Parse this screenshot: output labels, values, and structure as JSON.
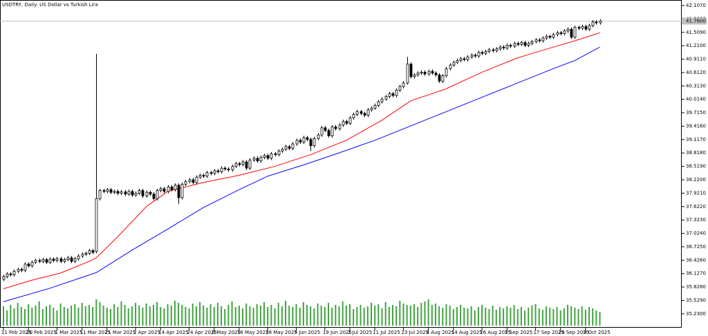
{
  "chart_data": {
    "type": "candlestick",
    "title": "USDTRY, Daily:  US Dollar vs Turkish Lira",
    "bull_color": "#ffffff",
    "bear_color": "#000000",
    "outline_color": "#000000",
    "volume_color": "#3fa33f",
    "ylim": [
      34.92,
      42.23
    ],
    "yticks": [
      {
        "value": 35.23,
        "label": "35.2300"
      },
      {
        "value": 35.529,
        "label": "35.5290"
      },
      {
        "value": 35.828,
        "label": "35.8280"
      },
      {
        "value": 36.127,
        "label": "36.1270"
      },
      {
        "value": 36.426,
        "label": "36.4260"
      },
      {
        "value": 36.725,
        "label": "36.7250"
      },
      {
        "value": 37.024,
        "label": "37.0240"
      },
      {
        "value": 37.323,
        "label": "37.3230"
      },
      {
        "value": 37.622,
        "label": "37.6220"
      },
      {
        "value": 37.921,
        "label": "37.9210"
      },
      {
        "value": 38.22,
        "label": "38.2200"
      },
      {
        "value": 38.519,
        "label": "38.5190"
      },
      {
        "value": 38.818,
        "label": "38.8180"
      },
      {
        "value": 39.117,
        "label": "39.1170"
      },
      {
        "value": 39.416,
        "label": "39.4160"
      },
      {
        "value": 39.715,
        "label": "39.7150"
      },
      {
        "value": 40.014,
        "label": "40.0140"
      },
      {
        "value": 40.313,
        "label": "40.3130"
      },
      {
        "value": 40.612,
        "label": "40.6120"
      },
      {
        "value": 40.911,
        "label": "40.9110"
      },
      {
        "value": 41.21,
        "label": "41.2100"
      },
      {
        "value": 41.509,
        "label": "41.5090"
      },
      {
        "value": 41.808,
        "label": "41.8080"
      },
      {
        "value": 42.107,
        "label": "42.1070"
      }
    ],
    "xticks": [
      {
        "value": 0,
        "label": "11 Feb 2025"
      },
      {
        "value": 7,
        "label": "20 Feb 2025"
      },
      {
        "value": 15,
        "label": "1 Mar 2025"
      },
      {
        "value": 22,
        "label": "11 Mar 2025"
      },
      {
        "value": 29,
        "label": "21 Mar 2025"
      },
      {
        "value": 37,
        "label": "2 Apr 2025"
      },
      {
        "value": 44,
        "label": "14 Apr 2025"
      },
      {
        "value": 52,
        "label": "24 Apr 2025"
      },
      {
        "value": 59,
        "label": "6 May 2025"
      },
      {
        "value": 66,
        "label": "16 May 2025"
      },
      {
        "value": 74,
        "label": "28 May 2025"
      },
      {
        "value": 82,
        "label": "9 Jun 2025"
      },
      {
        "value": 90,
        "label": "19 Jun 2025"
      },
      {
        "value": 97,
        "label": "1 Jul 2025"
      },
      {
        "value": 104,
        "label": "11 Jul 2025"
      },
      {
        "value": 112,
        "label": "23 Jul 2025"
      },
      {
        "value": 119,
        "label": "4 Aug 2025"
      },
      {
        "value": 126,
        "label": "14 Aug 2025"
      },
      {
        "value": 134,
        "label": "26 Aug 2025"
      },
      {
        "value": 141,
        "label": "5 Sep 2025"
      },
      {
        "value": 149,
        "label": "17 Sep 2025"
      },
      {
        "value": 156,
        "label": "29 Sep 2025"
      },
      {
        "value": 163,
        "label": "9 Oct 2025"
      }
    ],
    "last_price": {
      "value": 41.76,
      "label": "41.7600"
    },
    "open": [
      36.0,
      36.06,
      36.12,
      36.1,
      36.18,
      36.22,
      36.2,
      36.34,
      36.3,
      36.38,
      36.42,
      36.4,
      36.44,
      36.38,
      36.45,
      36.42,
      36.46,
      36.4,
      36.44,
      36.48,
      36.4,
      36.46,
      36.52,
      36.56,
      36.58,
      36.64,
      36.62,
      37.8,
      37.98,
      37.96,
      38.0,
      37.94,
      37.96,
      37.92,
      37.95,
      37.9,
      37.96,
      37.88,
      37.92,
      37.98,
      37.86,
      37.94,
      37.9,
      37.8,
      37.98,
      38.02,
      37.96,
      38.06,
      38.0,
      38.1,
      37.82,
      38.12,
      38.18,
      38.22,
      38.16,
      38.28,
      38.32,
      38.3,
      38.38,
      38.36,
      38.42,
      38.4,
      38.48,
      38.46,
      38.44,
      38.52,
      38.58,
      38.56,
      38.62,
      38.48,
      38.66,
      38.7,
      38.64,
      38.72,
      38.76,
      38.7,
      38.8,
      38.78,
      38.86,
      38.9,
      38.96,
      38.92,
      39.02,
      39.1,
      39.06,
      39.16,
      39.12,
      38.98,
      39.14,
      39.22,
      39.38,
      39.32,
      39.2,
      39.4,
      39.36,
      39.44,
      39.52,
      39.48,
      39.6,
      39.68,
      39.74,
      39.7,
      39.66,
      39.78,
      39.82,
      39.88,
      39.96,
      40.02,
      40.08,
      40.14,
      40.1,
      40.22,
      40.3,
      40.38,
      40.8,
      40.52,
      40.56,
      40.6,
      40.62,
      40.58,
      40.64,
      40.6,
      40.56,
      40.42,
      40.54,
      40.7,
      40.78,
      40.84,
      40.88,
      40.92,
      40.9,
      40.96,
      41.0,
      40.98,
      41.06,
      41.04,
      41.08,
      41.12,
      41.1,
      41.14,
      41.18,
      41.16,
      41.22,
      41.2,
      41.26,
      41.24,
      41.28,
      41.22,
      41.26,
      41.3,
      41.34,
      41.32,
      41.38,
      41.42,
      41.4,
      41.46,
      41.5,
      41.48,
      41.54,
      41.58,
      41.4,
      41.62,
      41.6,
      41.64,
      41.58,
      41.66,
      41.74,
      41.72
    ],
    "high": [
      36.1,
      36.16,
      36.16,
      36.22,
      36.26,
      36.26,
      36.38,
      36.38,
      36.42,
      36.46,
      36.46,
      36.48,
      36.48,
      36.49,
      36.49,
      36.5,
      36.5,
      36.48,
      36.52,
      36.52,
      36.5,
      36.56,
      36.6,
      36.62,
      36.68,
      36.68,
      41.03,
      38.02,
      38.02,
      38.04,
      38.04,
      38.0,
      38.0,
      37.99,
      37.99,
      38.0,
      38.0,
      37.96,
      38.02,
      38.02,
      37.98,
      37.98,
      37.94,
      38.02,
      38.06,
      38.06,
      38.1,
      38.1,
      38.14,
      38.14,
      38.16,
      38.22,
      38.26,
      38.26,
      38.32,
      38.36,
      38.36,
      38.42,
      38.42,
      38.46,
      38.46,
      38.52,
      38.52,
      38.5,
      38.56,
      38.62,
      38.62,
      38.66,
      38.66,
      38.7,
      38.74,
      38.74,
      38.76,
      38.8,
      38.8,
      38.84,
      38.84,
      38.9,
      38.94,
      39.0,
      39.0,
      39.06,
      39.14,
      39.14,
      39.2,
      39.2,
      39.16,
      39.18,
      39.26,
      39.42,
      39.42,
      39.36,
      39.44,
      39.44,
      39.48,
      39.56,
      39.56,
      39.64,
      39.72,
      39.78,
      39.78,
      39.74,
      39.82,
      39.86,
      39.92,
      40.0,
      40.06,
      40.12,
      40.18,
      40.18,
      40.26,
      40.34,
      40.42,
      40.96,
      40.84,
      40.6,
      40.64,
      40.66,
      40.66,
      40.68,
      40.68,
      40.64,
      40.6,
      40.58,
      40.74,
      40.82,
      40.88,
      40.92,
      40.96,
      40.96,
      41.0,
      41.04,
      41.04,
      41.1,
      41.1,
      41.12,
      41.16,
      41.16,
      41.18,
      41.22,
      41.22,
      41.26,
      41.26,
      41.3,
      41.3,
      41.32,
      41.32,
      41.3,
      41.34,
      41.38,
      41.38,
      41.42,
      41.46,
      41.46,
      41.5,
      41.54,
      41.54,
      41.58,
      41.62,
      41.62,
      41.66,
      41.66,
      41.68,
      41.68,
      41.7,
      41.78,
      41.78,
      41.8
    ],
    "low": [
      35.96,
      36.02,
      36.06,
      36.06,
      36.14,
      36.16,
      36.16,
      36.26,
      36.26,
      36.34,
      36.36,
      36.36,
      36.34,
      36.34,
      36.38,
      36.38,
      36.36,
      36.36,
      36.4,
      36.36,
      36.36,
      36.42,
      36.48,
      36.52,
      36.54,
      36.56,
      36.58,
      37.76,
      37.92,
      37.92,
      37.9,
      37.9,
      37.88,
      37.88,
      37.86,
      37.86,
      37.84,
      37.84,
      37.88,
      37.82,
      37.82,
      37.86,
      37.76,
      37.76,
      37.94,
      37.92,
      37.92,
      37.96,
      37.96,
      37.68,
      37.78,
      38.08,
      38.14,
      38.12,
      38.12,
      38.24,
      38.26,
      38.26,
      38.32,
      38.32,
      38.36,
      38.36,
      38.42,
      38.4,
      38.4,
      38.48,
      38.52,
      38.52,
      38.44,
      38.44,
      38.62,
      38.6,
      38.6,
      38.68,
      38.66,
      38.66,
      38.74,
      38.74,
      38.82,
      38.86,
      38.88,
      38.88,
      38.98,
      39.02,
      39.02,
      39.08,
      38.86,
      38.94,
      39.1,
      39.18,
      39.28,
      39.16,
      39.16,
      39.32,
      39.32,
      39.4,
      39.44,
      39.44,
      39.56,
      39.64,
      39.66,
      39.62,
      39.62,
      39.74,
      39.78,
      39.84,
      39.92,
      39.98,
      40.04,
      40.06,
      40.06,
      40.18,
      40.26,
      40.34,
      40.48,
      40.48,
      40.52,
      40.56,
      40.54,
      40.54,
      40.56,
      40.52,
      40.38,
      40.38,
      40.5,
      40.66,
      40.74,
      40.8,
      40.84,
      40.86,
      40.86,
      40.92,
      40.94,
      40.94,
      41.0,
      41.0,
      41.04,
      41.06,
      41.06,
      41.1,
      41.12,
      41.12,
      41.16,
      41.16,
      41.2,
      41.2,
      41.18,
      41.18,
      41.22,
      41.26,
      41.28,
      41.28,
      41.34,
      41.36,
      41.36,
      41.42,
      41.44,
      41.44,
      41.5,
      41.36,
      41.36,
      41.56,
      41.56,
      41.54,
      41.54,
      41.62,
      41.68,
      41.68
    ],
    "close": [
      36.06,
      36.12,
      36.1,
      36.18,
      36.22,
      36.2,
      36.34,
      36.3,
      36.38,
      36.42,
      36.4,
      36.44,
      36.38,
      36.45,
      36.42,
      36.46,
      36.4,
      36.44,
      36.48,
      36.4,
      36.46,
      36.52,
      36.56,
      36.58,
      36.64,
      36.6,
      37.8,
      37.98,
      37.96,
      38.0,
      37.94,
      37.96,
      37.92,
      37.95,
      37.9,
      37.96,
      37.88,
      37.92,
      37.98,
      37.86,
      37.94,
      37.9,
      37.8,
      37.98,
      38.02,
      37.96,
      38.06,
      38.0,
      38.1,
      37.82,
      38.12,
      38.18,
      38.22,
      38.16,
      38.28,
      38.32,
      38.3,
      38.38,
      38.36,
      38.42,
      38.4,
      38.48,
      38.46,
      38.44,
      38.52,
      38.58,
      38.56,
      38.62,
      38.48,
      38.66,
      38.7,
      38.64,
      38.72,
      38.76,
      38.7,
      38.8,
      38.78,
      38.86,
      38.9,
      38.96,
      38.92,
      39.02,
      39.1,
      39.06,
      39.16,
      39.12,
      38.98,
      39.14,
      39.22,
      39.38,
      39.32,
      39.2,
      39.4,
      39.36,
      39.44,
      39.52,
      39.48,
      39.6,
      39.68,
      39.74,
      39.7,
      39.66,
      39.78,
      39.82,
      39.88,
      39.96,
      40.02,
      40.08,
      40.14,
      40.1,
      40.22,
      40.3,
      40.38,
      40.8,
      40.52,
      40.56,
      40.6,
      40.62,
      40.58,
      40.64,
      40.6,
      40.56,
      40.42,
      40.54,
      40.7,
      40.78,
      40.84,
      40.88,
      40.92,
      40.9,
      40.96,
      41.0,
      40.98,
      41.06,
      41.04,
      41.08,
      41.12,
      41.1,
      41.14,
      41.18,
      41.16,
      41.22,
      41.2,
      41.26,
      41.24,
      41.28,
      41.22,
      41.26,
      41.3,
      41.34,
      41.32,
      41.38,
      41.42,
      41.4,
      41.46,
      41.5,
      41.48,
      41.54,
      41.58,
      41.4,
      41.62,
      41.6,
      41.64,
      41.58,
      41.66,
      41.74,
      41.72,
      41.76
    ],
    "volume": [
      28,
      22,
      30,
      25,
      33,
      27,
      24,
      31,
      26,
      29,
      35,
      24,
      28,
      30,
      26,
      22,
      32,
      27,
      25,
      29,
      31,
      26,
      33,
      28,
      30,
      27,
      38,
      34,
      29,
      26,
      24,
      31,
      27,
      35,
      30,
      25,
      28,
      33,
      29,
      26,
      32,
      28,
      30,
      34,
      27,
      25,
      31,
      29,
      36,
      33,
      30,
      27,
      25,
      32,
      28,
      34,
      29,
      26,
      31,
      27,
      33,
      28,
      24,
      30,
      35,
      27,
      29,
      25,
      32,
      28,
      26,
      31,
      29,
      34,
      27,
      30,
      25,
      33,
      28,
      36,
      29,
      27,
      31,
      26,
      34,
      30,
      28,
      25,
      32,
      29,
      27,
      33,
      26,
      30,
      28,
      35,
      29,
      31,
      24,
      27,
      30,
      26,
      28,
      33,
      29,
      31,
      25,
      34,
      27,
      30,
      28,
      36,
      32,
      30,
      29,
      31,
      27,
      33,
      35,
      38,
      30,
      32,
      28,
      26,
      31,
      29,
      24,
      27,
      30,
      26,
      25,
      28,
      22,
      27,
      30,
      26,
      24,
      29,
      23,
      27,
      25,
      28,
      26,
      30,
      24,
      27,
      22,
      26,
      29,
      31,
      25,
      23,
      28,
      26,
      24,
      27,
      22,
      25,
      30,
      28,
      26,
      24,
      28,
      23,
      27,
      25,
      22,
      20
    ],
    "moving_averages": [
      {
        "color": "#ff0000",
        "x": [
          0,
          8,
          16,
          24,
          26,
          32,
          40,
          46,
          56,
          66,
          76,
          86,
          96,
          106,
          114,
          124,
          134,
          144,
          154,
          160,
          167
        ],
        "values": [
          35.79,
          35.98,
          36.14,
          36.4,
          36.48,
          36.95,
          37.62,
          37.96,
          38.16,
          38.32,
          38.52,
          38.78,
          39.1,
          39.55,
          39.98,
          40.25,
          40.62,
          40.94,
          41.18,
          41.32,
          41.5
        ]
      },
      {
        "color": "#0000ff",
        "x": [
          0,
          13,
          26,
          36,
          46,
          56,
          66,
          74,
          84,
          94,
          104,
          114,
          124,
          134,
          144,
          154,
          160,
          167
        ],
        "values": [
          35.5,
          35.8,
          36.15,
          36.65,
          37.12,
          37.6,
          38.0,
          38.3,
          38.55,
          38.82,
          39.1,
          39.42,
          39.74,
          40.06,
          40.38,
          40.7,
          40.88,
          41.18
        ]
      }
    ]
  }
}
